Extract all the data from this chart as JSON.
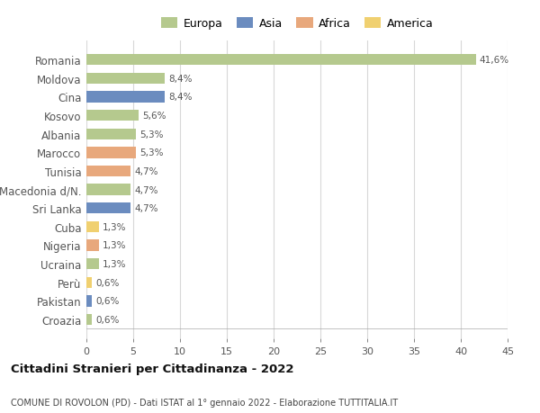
{
  "categories": [
    "Romania",
    "Moldova",
    "Cina",
    "Kosovo",
    "Albania",
    "Marocco",
    "Tunisia",
    "Macedonia d/N.",
    "Sri Lanka",
    "Cuba",
    "Nigeria",
    "Ucraina",
    "Perù",
    "Pakistan",
    "Croazia"
  ],
  "values": [
    41.6,
    8.4,
    8.4,
    5.6,
    5.3,
    5.3,
    4.7,
    4.7,
    4.7,
    1.3,
    1.3,
    1.3,
    0.6,
    0.6,
    0.6
  ],
  "labels": [
    "41,6%",
    "8,4%",
    "8,4%",
    "5,6%",
    "5,3%",
    "5,3%",
    "4,7%",
    "4,7%",
    "4,7%",
    "1,3%",
    "1,3%",
    "1,3%",
    "0,6%",
    "0,6%",
    "0,6%"
  ],
  "colors": [
    "#b5c98e",
    "#b5c98e",
    "#6b8cbf",
    "#b5c98e",
    "#b5c98e",
    "#e8a87c",
    "#e8a87c",
    "#b5c98e",
    "#6b8cbf",
    "#f0d070",
    "#e8a87c",
    "#b5c98e",
    "#f0d070",
    "#6b8cbf",
    "#b5c98e"
  ],
  "legend_labels": [
    "Europa",
    "Asia",
    "Africa",
    "America"
  ],
  "legend_colors": [
    "#b5c98e",
    "#6b8cbf",
    "#e8a87c",
    "#f0d070"
  ],
  "title": "Cittadini Stranieri per Cittadinanza - 2022",
  "subtitle": "COMUNE DI ROVOLON (PD) - Dati ISTAT al 1° gennaio 2022 - Elaborazione TUTTITALIA.IT",
  "xlim": [
    0,
    45
  ],
  "xticks": [
    0,
    5,
    10,
    15,
    20,
    25,
    30,
    35,
    40,
    45
  ],
  "background_color": "#ffffff",
  "grid_color": "#d8d8d8"
}
